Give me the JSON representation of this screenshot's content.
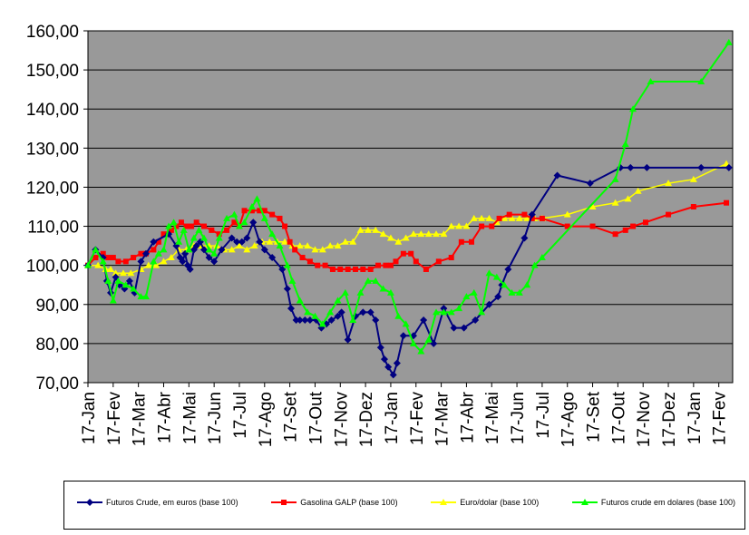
{
  "chart_data": {
    "type": "line",
    "title": "",
    "xlabel": "",
    "ylabel": "",
    "ylim": [
      70,
      160
    ],
    "y_ticks": [
      "70,00",
      "80,00",
      "90,00",
      "100,00",
      "110,00",
      "120,00",
      "130,00",
      "140,00",
      "150,00",
      "160,00"
    ],
    "y_tick_values": [
      70,
      80,
      90,
      100,
      110,
      120,
      130,
      140,
      150,
      160
    ],
    "x_ticks": [
      "17-Jan",
      "17-Fev",
      "17-Mar",
      "17-Abr",
      "17-Mai",
      "17-Jun",
      "17-Jul",
      "17-Ago",
      "17-Set",
      "17-Out",
      "17-Nov",
      "17-Dez",
      "17-Jan",
      "17-Fev",
      "17-Mar",
      "17-Abr",
      "17-Mai",
      "17-Jun",
      "17-Jul",
      "17-Ago",
      "17-Set",
      "17-Out",
      "17-Nov",
      "17-Dez",
      "17-Jan",
      "17-Fev"
    ],
    "x_unit": "months since first 17-Jan tick",
    "plot_background": "#999999",
    "grid": true,
    "legend_position": "bottom",
    "series": [
      {
        "name": "Futuros Crude, em euros (base 100)",
        "color": "#000080",
        "marker": "diamond",
        "x": [
          0,
          0.3,
          0.6,
          0.75,
          0.9,
          1.1,
          1.25,
          1.45,
          1.65,
          1.85,
          2.1,
          2.3,
          2.6,
          3.2,
          3.5,
          3.65,
          3.75,
          3.85,
          3.95,
          4.05,
          4.2,
          4.3,
          4.45,
          4.6,
          4.8,
          5.0,
          5.3,
          5.7,
          5.9,
          6.1,
          6.3,
          6.55,
          6.8,
          7.0,
          7.3,
          7.7,
          7.9,
          8.05,
          8.25,
          8.4,
          8.6,
          8.8,
          9.05,
          9.25,
          9.45,
          9.65,
          9.9,
          10.05,
          10.3,
          10.6,
          10.9,
          11.2,
          11.4,
          11.6,
          11.75,
          11.9,
          12.1,
          12.25,
          12.5,
          12.9,
          13.3,
          13.7,
          14.1,
          14.5,
          14.9,
          15.35,
          15.9,
          16.25,
          16.4,
          16.65,
          17.3,
          17.6,
          18.6,
          19.9,
          21.1,
          21.5,
          22.15,
          24.3,
          25.4
        ],
        "values": [
          100,
          104,
          102,
          96,
          93,
          97,
          95,
          94,
          96,
          93,
          101,
          103,
          106,
          108,
          105,
          102,
          101,
          103,
          100,
          99,
          104,
          105,
          106,
          104,
          102,
          101,
          104,
          107,
          106,
          106,
          107,
          111,
          106,
          104,
          102,
          99,
          94,
          89,
          86,
          86,
          86,
          86,
          86,
          84,
          85,
          86,
          87,
          88,
          81,
          87,
          88,
          88,
          86,
          79,
          76,
          74,
          72,
          75,
          82,
          82,
          86,
          80,
          89,
          84,
          84,
          86,
          90,
          92,
          95,
          99,
          107,
          113,
          123,
          121,
          125,
          125,
          125,
          125,
          125
        ]
      },
      {
        "name": "Gasolina GALP (base 100)",
        "color": "#FF0000",
        "marker": "square",
        "x": [
          0,
          0.3,
          0.6,
          0.8,
          1.0,
          1.2,
          1.5,
          1.8,
          2.1,
          2.3,
          2.6,
          2.8,
          3.0,
          3.3,
          3.5,
          3.7,
          3.9,
          4.1,
          4.3,
          4.6,
          4.9,
          5.2,
          5.5,
          5.8,
          6.0,
          6.2,
          6.5,
          6.8,
          7.0,
          7.3,
          7.6,
          7.8,
          8.0,
          8.2,
          8.5,
          8.8,
          9.1,
          9.4,
          9.7,
          10.0,
          10.3,
          10.6,
          10.9,
          11.2,
          11.5,
          11.8,
          12.0,
          12.2,
          12.5,
          12.8,
          13.0,
          13.4,
          13.9,
          14.4,
          14.8,
          15.2,
          15.6,
          16.0,
          16.3,
          16.7,
          17.3,
          17.6,
          18.0,
          19.0,
          20.0,
          20.9,
          21.3,
          21.6,
          22.1,
          23.0,
          24.0,
          25.3
        ],
        "values": [
          100,
          102,
          103,
          102,
          102,
          101,
          101,
          102,
          103,
          103,
          104,
          106,
          108,
          109,
          110,
          111,
          110,
          110,
          111,
          110,
          109,
          108,
          109,
          111,
          110,
          114,
          114,
          114,
          114,
          113,
          112,
          110,
          106,
          104,
          102,
          101,
          100,
          100,
          99,
          99,
          99,
          99,
          99,
          99,
          100,
          100,
          100,
          101,
          103,
          103,
          101,
          99,
          101,
          102,
          106,
          106,
          110,
          110,
          112,
          113,
          113,
          112,
          112,
          110,
          110,
          108,
          109,
          110,
          111,
          113,
          115,
          116
        ]
      },
      {
        "name": "Euro/dolar (base 100)",
        "color": "#FFFF00",
        "marker": "triangle",
        "x": [
          0,
          0.4,
          0.7,
          0.9,
          1.1,
          1.4,
          1.7,
          2.1,
          2.4,
          2.7,
          3.0,
          3.3,
          3.6,
          3.9,
          4.2,
          4.5,
          4.8,
          5.1,
          5.4,
          5.7,
          6.0,
          6.3,
          6.6,
          6.9,
          7.2,
          7.5,
          7.8,
          8.1,
          8.4,
          8.7,
          9.0,
          9.3,
          9.6,
          9.9,
          10.2,
          10.5,
          10.8,
          11.1,
          11.4,
          11.7,
          12.0,
          12.3,
          12.6,
          12.9,
          13.2,
          13.5,
          13.8,
          14.1,
          14.4,
          14.7,
          15.0,
          15.3,
          15.6,
          15.9,
          16.2,
          16.5,
          16.8,
          17.1,
          17.4,
          17.7,
          18.0,
          19.0,
          20.0,
          20.9,
          21.4,
          21.8,
          23.0,
          24.0,
          25.3
        ],
        "values": [
          100,
          100,
          99,
          99,
          98,
          98,
          98,
          99,
          100,
          100,
          101,
          102,
          104,
          104,
          105,
          105,
          105,
          105,
          104,
          104,
          105,
          104,
          105,
          106,
          106,
          106,
          106,
          105,
          105,
          105,
          104,
          104,
          105,
          105,
          106,
          106,
          109,
          109,
          109,
          108,
          107,
          106,
          107,
          108,
          108,
          108,
          108,
          108,
          110,
          110,
          110,
          112,
          112,
          112,
          111,
          112,
          112,
          112,
          112,
          112,
          112,
          113,
          115,
          116,
          117,
          119,
          121,
          122,
          126
        ]
      },
      {
        "name": "Futuros crude em dolares (base 100)",
        "color": "#00FF00",
        "marker": "triangle",
        "x": [
          0,
          0.3,
          0.6,
          0.8,
          1.0,
          1.2,
          1.5,
          1.8,
          2.1,
          2.3,
          2.6,
          2.8,
          3.0,
          3.2,
          3.4,
          3.6,
          3.8,
          4.0,
          4.2,
          4.4,
          4.6,
          4.8,
          5.0,
          5.2,
          5.5,
          5.8,
          6.0,
          6.2,
          6.5,
          6.7,
          7.0,
          7.3,
          7.6,
          7.9,
          8.1,
          8.4,
          8.7,
          9.0,
          9.3,
          9.6,
          9.9,
          10.2,
          10.5,
          10.8,
          11.1,
          11.4,
          11.7,
          12.0,
          12.3,
          12.6,
          12.9,
          13.2,
          13.5,
          13.8,
          14.1,
          14.4,
          14.7,
          15.0,
          15.3,
          15.6,
          15.9,
          16.2,
          16.5,
          16.8,
          17.1,
          17.4,
          17.7,
          18.0,
          20.9,
          21.3,
          21.6,
          22.3,
          24.3,
          25.4
        ],
        "values": [
          100,
          104,
          101,
          96,
          91,
          96,
          95,
          94,
          92,
          92,
          101,
          103,
          104,
          110,
          111,
          106,
          109,
          104,
          107,
          109,
          107,
          104,
          103,
          107,
          112,
          113,
          110,
          111,
          115,
          117,
          112,
          108,
          105,
          100,
          96,
          91,
          88,
          87,
          85,
          88,
          91,
          93,
          86,
          93,
          96,
          96,
          94,
          93,
          87,
          85,
          80,
          78,
          81,
          88,
          88,
          88,
          89,
          92,
          93,
          88,
          98,
          97,
          95,
          93,
          93,
          95,
          100,
          102,
          122,
          131,
          140,
          147,
          147,
          157
        ]
      }
    ]
  }
}
